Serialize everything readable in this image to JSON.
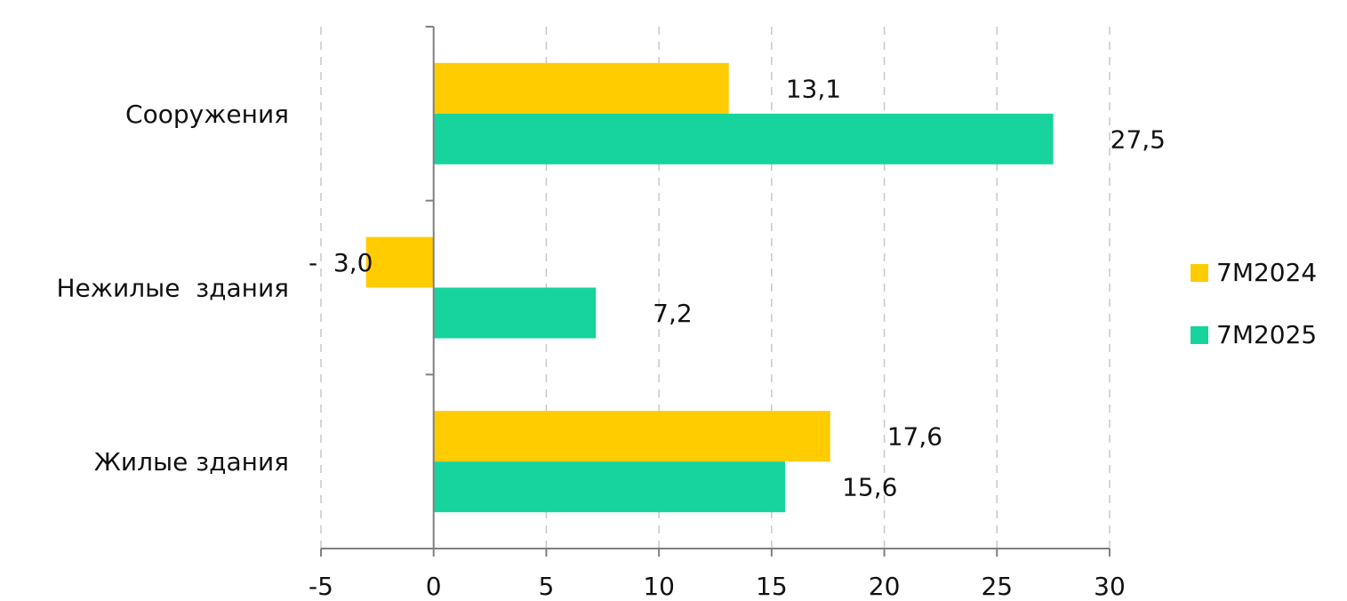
{
  "chart_data": {
    "type": "bar",
    "orientation": "horizontal",
    "categories": [
      "Сооружения",
      "Нежилые  здания",
      "Жилые здания"
    ],
    "series": [
      {
        "name": "7M2024",
        "values": [
          13.1,
          -3.0,
          17.6
        ],
        "labels": [
          "13,1",
          "-3,0",
          "17,6"
        ],
        "color": "#FFCC00"
      },
      {
        "name": "7M2025",
        "values": [
          27.5,
          7.2,
          15.6
        ],
        "labels": [
          "27,5",
          "7,2",
          "15,6"
        ],
        "color": "#17D49C"
      }
    ],
    "xlim": [
      -5,
      30
    ],
    "xticks": [
      -5,
      0,
      5,
      10,
      15,
      20,
      25,
      30
    ],
    "xtick_labels": [
      "-5",
      "0",
      "5",
      "10",
      "15",
      "20",
      "25",
      "30"
    ],
    "grid": true,
    "legend_position": "right"
  }
}
